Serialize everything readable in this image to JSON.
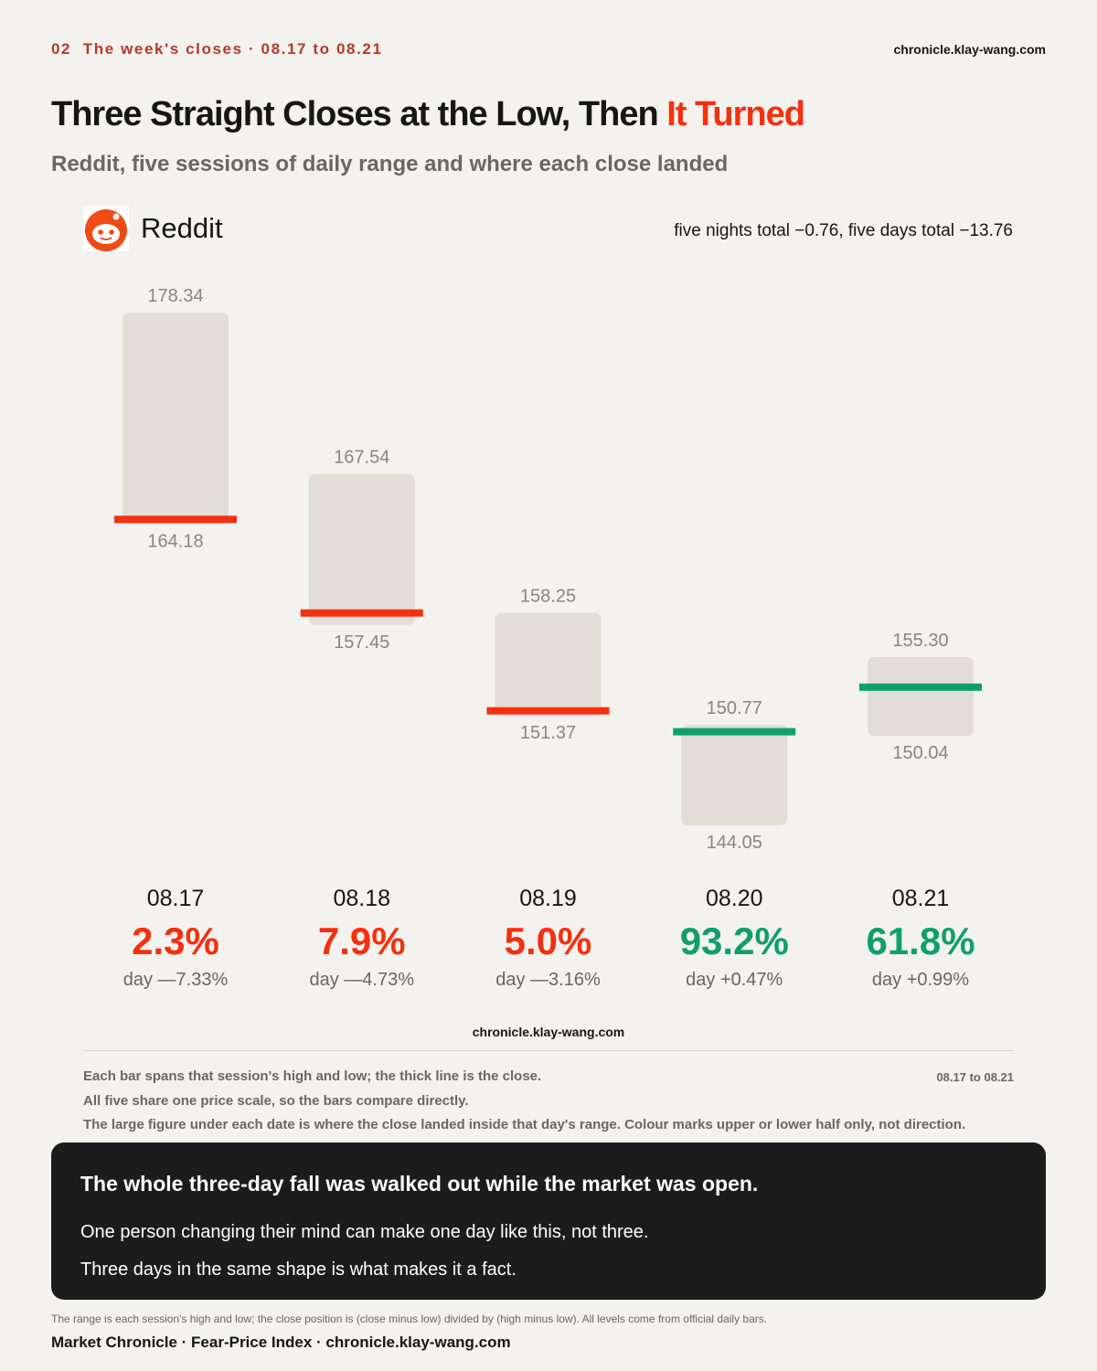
{
  "header": {
    "eyebrow": "02  The week's closes · 08.17 to 08.21",
    "site": "chronicle.klay-wang.com"
  },
  "chart_data": {
    "type": "range",
    "title": "Three Straight Closes at the Low, Then ",
    "title_accent": "It Turned",
    "subtitle": "Reddit, five sessions of daily range and where each close landed",
    "brand": "Reddit",
    "summary": "five nights total −0.76, five days total −13.76",
    "categories": [
      "08.17",
      "08.18",
      "08.19",
      "08.20",
      "08.21"
    ],
    "bar_color": "#e2ddd6",
    "high": {
      "values": [
        178.34,
        167.54,
        158.25,
        150.77,
        155.3
      ],
      "value_labels": [
        "178.34",
        "167.54",
        "158.25",
        "150.77",
        "155.30"
      ]
    },
    "low": {
      "values": [
        164.18,
        157.45,
        151.37,
        144.05,
        150.04
      ],
      "value_labels": [
        "164.18",
        "157.45",
        "151.37",
        "144.05",
        "150.04"
      ]
    },
    "close": {
      "values": [
        164.51,
        158.25,
        151.71,
        150.31,
        153.29
      ],
      "colors": [
        "#f5300f",
        "#f5300f",
        "#f5300f",
        "#0fa06a",
        "#0fa06a"
      ]
    },
    "close_position": {
      "values": [
        2.3,
        7.9,
        5.0,
        93.2,
        61.8
      ],
      "value_labels": [
        "2.3%",
        "7.9%",
        "5.0%",
        "93.2%",
        "61.8%"
      ]
    },
    "day_change": [
      "day —7.33%",
      "day —4.73%",
      "day —3.16%",
      "day +0.47%",
      "day +0.99%"
    ]
  },
  "watermark": "chronicle.klay-wang.com",
  "notes": [
    "Each bar spans that session's high and low; the thick line is the close.",
    "All five share one price scale, so the bars compare directly.",
    "The large figure under each date is where the close landed inside that day's range. Colour marks upper or lower half only, not direction."
  ],
  "date_range": "08.17 to 08.21",
  "callout": {
    "heading": "The whole three-day fall was walked out while the market was open.",
    "lines": [
      "One person changing their mind can make one day like this, not three.",
      "Three days in the same shape is what makes it a fact."
    ]
  },
  "footnote": "The range is each session's high and low; the close position is (close minus low) divided by (high minus low). All levels come from official daily bars.",
  "footer": "Market Chronicle · Fear-Price Index · chronicle.klay-wang.com"
}
